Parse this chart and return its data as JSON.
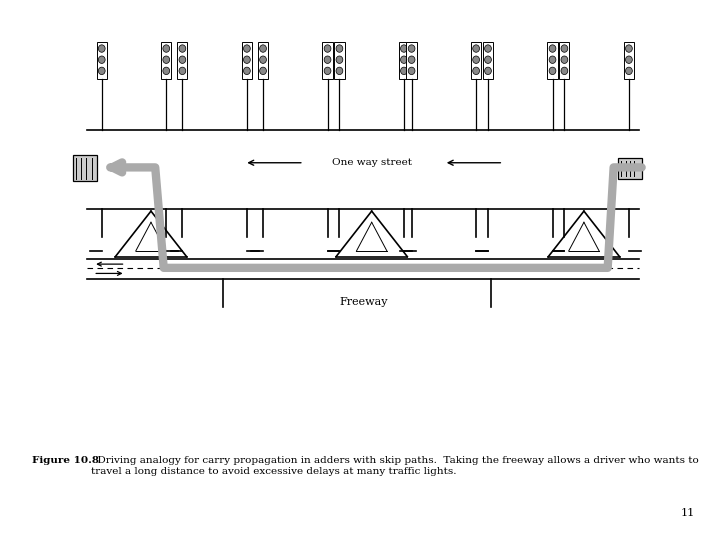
{
  "caption_bold": "Figure 10.8",
  "caption_text": "  Driving analogy for carry propagation in adders with skip paths.  Taking the freeway allows a driver who wants to travel a long distance to avoid excessive delays at many traffic lights.",
  "page_number": "11",
  "bg_color": "#ffffff",
  "line_color": "#000000",
  "gray_path_color": "#aaaaaa",
  "light_gray": "#cccccc",
  "dark_gray": "#888888",
  "one_way_label": "One way street",
  "freeway_label": "Freeway"
}
